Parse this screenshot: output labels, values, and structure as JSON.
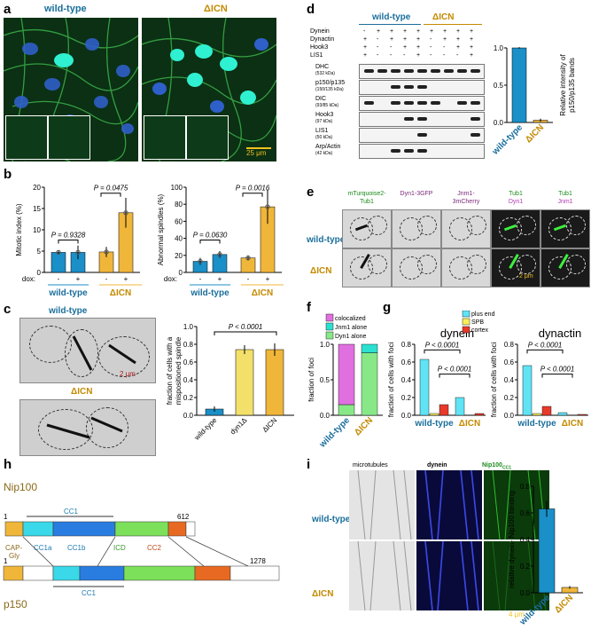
{
  "panel_labels": {
    "a": "a",
    "b": "b",
    "c": "c",
    "d": "d",
    "e": "e",
    "f": "f",
    "g": "g",
    "h": "h",
    "i": "i"
  },
  "strains": {
    "wt": "wild-type",
    "icn": "ΔICN"
  },
  "panel_a": {
    "scale": "25 μm"
  },
  "panel_b": {
    "dox": "dox:",
    "minus": "-",
    "plus": "+"
  },
  "panel_c": {
    "scale": "2 μm"
  },
  "panel_d": {
    "rows": [
      "Dynein",
      "Dynactin",
      "Hook3",
      "LIS1"
    ],
    "signs": [
      [
        "-",
        "+",
        "+",
        "+",
        "+",
        "+",
        "+",
        "+",
        "+"
      ],
      [
        "+",
        "-",
        "+",
        "+",
        "+",
        "-",
        "+",
        "+",
        "+"
      ],
      [
        "+",
        "-",
        "-",
        "+",
        "+",
        "-",
        "-",
        "+",
        "+"
      ],
      [
        "+",
        "-",
        "-",
        "-",
        "+",
        "-",
        "-",
        "-",
        "+"
      ]
    ],
    "blots": [
      {
        "n": "DHC",
        "kda": "(532 kDa)"
      },
      {
        "n": "p150/p135",
        "kda": "(150/135 kDa)"
      },
      {
        "n": "DIC",
        "kda": "(93/85 kDa)"
      },
      {
        "n": "Hook3",
        "kda": "(97 kDa)"
      },
      {
        "n": "LIS1",
        "kda": "(50 kDa)"
      },
      {
        "n": "Arp/Actin",
        "kda": "(42 kDa)"
      }
    ]
  },
  "panel_e": {
    "cols": [
      {
        "a": "mTurquoise2-",
        "b": "Tub1"
      },
      {
        "a": "Dyn1-3GFP",
        "b": ""
      },
      {
        "a": "Jnm1-",
        "b": "3mCherry"
      },
      {
        "a": "Tub1",
        "b": "Dyn1"
      },
      {
        "a": "Tub1",
        "b": "Jnm1"
      }
    ],
    "scale": "2 μm"
  },
  "panel_f": {
    "legend": [
      "colocalized",
      "Jnm1 alone",
      "Dyn1 alone"
    ]
  },
  "panel_g": {
    "title_dynein": "dynein",
    "title_dynactin": "dynactin",
    "legend": [
      "plus end",
      "SPB",
      "cortex"
    ]
  },
  "panel_h": {
    "nip": "Nip100",
    "nip_len": "612",
    "p150": "p150",
    "p150_len": "1278",
    "one": "1",
    "one2": "1",
    "cap": "CAP-",
    "gly": "Gly",
    "cc1": "CC1",
    "cc1a": "CC1a",
    "cc1b": "CC1b",
    "icd": "ICD",
    "cc2": "CC2",
    "cc1_p": "CC1"
  },
  "panel_i": {
    "cols": [
      "microtubules",
      "dynein",
      "Nip100"
    ],
    "sub": "CC1",
    "scale": "4 μm"
  },
  "colors": {
    "wt_bar": "#1a8fc8",
    "icn_bar": "#f0b63a",
    "dyn1d_bar": "#f2e06a",
    "jnm1_alone": "#2ce0d0",
    "dyn1_alone": "#88e888",
    "colocalized": "#e070e0",
    "plus_end": "#5fe3f5",
    "spb": "#f7ef5a",
    "cortex": "#e83a2a"
  },
  "chart_data": [
    {
      "id": "b1",
      "type": "bar",
      "ylabel": "Mitotic index (%)",
      "ylim": [
        0,
        20
      ],
      "yticks": [
        "0",
        "5",
        "10",
        "15",
        "20"
      ],
      "categories": [
        "wt -",
        "wt +",
        "ΔICN -",
        "ΔICN +"
      ],
      "values": [
        4.7,
        4.7,
        4.8,
        14
      ],
      "errors": [
        0.4,
        1.6,
        1.2,
        3.5
      ],
      "pvals": [
        "P = 0.9328",
        "P = 0.0475"
      ]
    },
    {
      "id": "b2",
      "type": "bar",
      "ylabel": "Abnormal spindles (%)",
      "ylim": [
        0,
        100
      ],
      "yticks": [
        "0",
        "20",
        "40",
        "60",
        "80",
        "100"
      ],
      "categories": [
        "wt -",
        "wt +",
        "ΔICN -",
        "ΔICN +"
      ],
      "values": [
        13,
        21,
        17,
        77
      ],
      "errors": [
        4,
        4,
        3,
        20
      ],
      "pvals": [
        "P = 0.0630",
        "P = 0.0016"
      ]
    },
    {
      "id": "c",
      "type": "bar",
      "ylabel_a": "fraction of cells with a",
      "ylabel_b": "mispositioned spindle",
      "ylim": [
        0,
        1.0
      ],
      "yticks": [
        "0.0",
        "0.2",
        "0.4",
        "0.6",
        "0.8",
        "1.0"
      ],
      "categories": [
        "wild-type",
        "dyn1Δ",
        "ΔICN"
      ],
      "values": [
        0.07,
        0.74,
        0.74
      ],
      "errors": [
        0.03,
        0.05,
        0.07
      ],
      "pvals": [
        "P < 0.0001"
      ]
    },
    {
      "id": "d",
      "type": "bar",
      "ylabel_a": "Relative intensity of",
      "ylabel_b": "p150/p135 bands",
      "ylim": [
        0,
        1.0
      ],
      "yticks": [
        "0.0",
        "0.5",
        "1.0"
      ],
      "categories": [
        "wild-type",
        "ΔICN"
      ],
      "values": [
        1.0,
        0.03
      ],
      "errors": [
        0.01,
        0.02
      ]
    },
    {
      "id": "f",
      "type": "bar",
      "ylabel": "fraction of foci",
      "ylim": [
        0,
        1.0
      ],
      "yticks": [
        "0.0",
        "0.5",
        "1.0"
      ],
      "categories": [
        "wild-type",
        "ΔICN"
      ],
      "series": [
        {
          "name": "Dyn1 alone",
          "values": [
            0.15,
            0.88
          ]
        },
        {
          "name": "Jnm1 alone",
          "values": [
            0.0,
            0.12
          ]
        },
        {
          "name": "colocalized",
          "values": [
            0.85,
            0.0
          ]
        }
      ]
    },
    {
      "id": "g1",
      "type": "bar",
      "ylabel": "fraction of cells with foci",
      "ylim": [
        0,
        0.8
      ],
      "yticks": [
        "0.0",
        "0.2",
        "0.4",
        "0.6",
        "0.8"
      ],
      "categories": [
        "wild-type",
        "ΔICN"
      ],
      "series": [
        {
          "name": "plus end",
          "values": [
            0.63,
            0.2
          ]
        },
        {
          "name": "SPB",
          "values": [
            0.02,
            0.0
          ]
        },
        {
          "name": "cortex",
          "values": [
            0.12,
            0.02
          ]
        }
      ],
      "pvals": [
        "P < 0.0001",
        "P < 0.0001"
      ]
    },
    {
      "id": "g2",
      "type": "bar",
      "ylabel": "fraction of cells with foci",
      "ylim": [
        0,
        0.8
      ],
      "yticks": [
        "0.0",
        "0.2",
        "0.4",
        "0.6",
        "0.8"
      ],
      "categories": [
        "wild-type",
        "ΔICN"
      ],
      "series": [
        {
          "name": "plus end",
          "values": [
            0.56,
            0.03
          ]
        },
        {
          "name": "SPB",
          "values": [
            0.02,
            0.0
          ]
        },
        {
          "name": "cortex",
          "values": [
            0.1,
            0.01
          ]
        }
      ],
      "pvals": [
        "P < 0.0001",
        "P < 0.0001"
      ]
    },
    {
      "id": "i",
      "type": "bar",
      "ylabel_a": "relative dynein-",
      "ylabel_b": "Nip100",
      "ylabel_c": "binding",
      "ylim": [
        0,
        0.8
      ],
      "yticks": [
        "0.0",
        "0.2",
        "0.4",
        "0.6",
        "0.8"
      ],
      "categories": [
        "wild-type",
        "ΔICN"
      ],
      "values": [
        0.63,
        0.04
      ],
      "errors": [
        0.06,
        0.01
      ]
    }
  ]
}
